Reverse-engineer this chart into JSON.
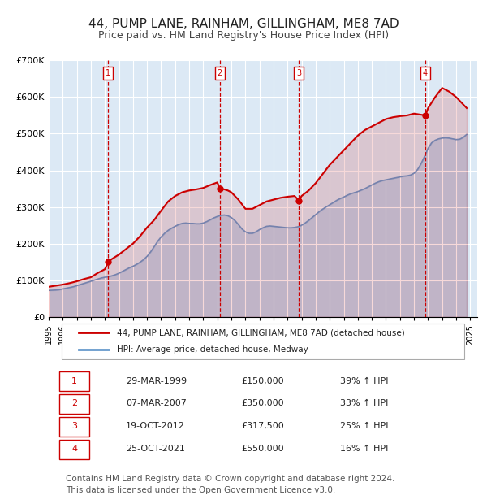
{
  "title": "44, PUMP LANE, RAINHAM, GILLINGHAM, ME8 7AD",
  "subtitle": "Price paid vs. HM Land Registry's House Price Index (HPI)",
  "title_fontsize": 11,
  "subtitle_fontsize": 9,
  "background_color": "#ffffff",
  "plot_bg_color": "#dce9f5",
  "grid_color": "#ffffff",
  "ylabel": "",
  "ylim": [
    0,
    700000
  ],
  "yticks": [
    0,
    100000,
    200000,
    300000,
    400000,
    500000,
    600000,
    700000
  ],
  "ytick_labels": [
    "£0",
    "£100K",
    "£200K",
    "£300K",
    "£400K",
    "£500K",
    "£600K",
    "£700K"
  ],
  "xlim_start": 1995.0,
  "xlim_end": 2025.5,
  "sale_color": "#cc0000",
  "hpi_color": "#6699cc",
  "sale_label": "44, PUMP LANE, RAINHAM, GILLINGHAM, ME8 7AD (detached house)",
  "hpi_label": "HPI: Average price, detached house, Medway",
  "purchases": [
    {
      "num": 1,
      "date_label": "29-MAR-1999",
      "year": 1999.24,
      "price": 150000,
      "pct": "39%",
      "vline_year": 1999.24
    },
    {
      "num": 2,
      "date_label": "07-MAR-2007",
      "year": 2007.18,
      "price": 350000,
      "pct": "33%",
      "vline_year": 2007.18
    },
    {
      "num": 3,
      "date_label": "19-OCT-2012",
      "year": 2012.8,
      "price": 317500,
      "pct": "25%",
      "vline_year": 2012.8
    },
    {
      "num": 4,
      "date_label": "25-OCT-2021",
      "year": 2021.81,
      "price": 550000,
      "pct": "16%",
      "vline_year": 2021.81
    }
  ],
  "hpi_data": {
    "years": [
      1995.0,
      1995.25,
      1995.5,
      1995.75,
      1996.0,
      1996.25,
      1996.5,
      1996.75,
      1997.0,
      1997.25,
      1997.5,
      1997.75,
      1998.0,
      1998.25,
      1998.5,
      1998.75,
      1999.0,
      1999.25,
      1999.5,
      1999.75,
      2000.0,
      2000.25,
      2000.5,
      2000.75,
      2001.0,
      2001.25,
      2001.5,
      2001.75,
      2002.0,
      2002.25,
      2002.5,
      2002.75,
      2003.0,
      2003.25,
      2003.5,
      2003.75,
      2004.0,
      2004.25,
      2004.5,
      2004.75,
      2005.0,
      2005.25,
      2005.5,
      2005.75,
      2006.0,
      2006.25,
      2006.5,
      2006.75,
      2007.0,
      2007.25,
      2007.5,
      2007.75,
      2008.0,
      2008.25,
      2008.5,
      2008.75,
      2009.0,
      2009.25,
      2009.5,
      2009.75,
      2010.0,
      2010.25,
      2010.5,
      2010.75,
      2011.0,
      2011.25,
      2011.5,
      2011.75,
      2012.0,
      2012.25,
      2012.5,
      2012.75,
      2013.0,
      2013.25,
      2013.5,
      2013.75,
      2014.0,
      2014.25,
      2014.5,
      2014.75,
      2015.0,
      2015.25,
      2015.5,
      2015.75,
      2016.0,
      2016.25,
      2016.5,
      2016.75,
      2017.0,
      2017.25,
      2017.5,
      2017.75,
      2018.0,
      2018.25,
      2018.5,
      2018.75,
      2019.0,
      2019.25,
      2019.5,
      2019.75,
      2020.0,
      2020.25,
      2020.5,
      2020.75,
      2021.0,
      2021.25,
      2021.5,
      2021.75,
      2022.0,
      2022.25,
      2022.5,
      2022.75,
      2023.0,
      2023.25,
      2023.5,
      2023.75,
      2024.0,
      2024.25,
      2024.5,
      2024.75
    ],
    "values": [
      72000,
      72500,
      73000,
      74000,
      76000,
      78000,
      80000,
      82000,
      85000,
      88000,
      91000,
      94000,
      97000,
      100000,
      103000,
      106000,
      108000,
      109500,
      112000,
      115000,
      119000,
      124000,
      129000,
      134000,
      138000,
      143000,
      149000,
      156000,
      165000,
      177000,
      191000,
      206000,
      218000,
      228000,
      236000,
      242000,
      247000,
      252000,
      255000,
      256000,
      255000,
      255000,
      254000,
      254000,
      256000,
      260000,
      265000,
      270000,
      274000,
      277000,
      278000,
      276000,
      271000,
      263000,
      252000,
      240000,
      232000,
      228000,
      228000,
      232000,
      238000,
      243000,
      247000,
      248000,
      247000,
      246000,
      245000,
      244000,
      243000,
      243000,
      244000,
      246000,
      250000,
      256000,
      263000,
      271000,
      279000,
      287000,
      294000,
      300000,
      306000,
      312000,
      318000,
      323000,
      327000,
      332000,
      336000,
      339000,
      342000,
      346000,
      350000,
      355000,
      360000,
      365000,
      369000,
      372000,
      374000,
      376000,
      378000,
      380000,
      382000,
      384000,
      385000,
      387000,
      392000,
      402000,
      418000,
      438000,
      460000,
      475000,
      482000,
      486000,
      488000,
      489000,
      488000,
      486000,
      484000,
      485000,
      490000,
      498000
    ]
  },
  "sale_line_data": {
    "years": [
      1995.0,
      1995.5,
      1996.0,
      1996.5,
      1997.0,
      1997.5,
      1998.0,
      1998.5,
      1999.0,
      1999.24,
      1999.5,
      2000.0,
      2000.5,
      2001.0,
      2001.5,
      2002.0,
      2002.5,
      2003.0,
      2003.5,
      2004.0,
      2004.5,
      2005.0,
      2005.5,
      2006.0,
      2006.5,
      2007.0,
      2007.18,
      2007.5,
      2007.75,
      2008.0,
      2008.5,
      2009.0,
      2009.5,
      2010.0,
      2010.5,
      2011.0,
      2011.5,
      2012.0,
      2012.5,
      2012.8,
      2013.0,
      2013.5,
      2014.0,
      2014.5,
      2015.0,
      2015.5,
      2016.0,
      2016.5,
      2017.0,
      2017.5,
      2018.0,
      2018.5,
      2019.0,
      2019.5,
      2020.0,
      2020.5,
      2021.0,
      2021.81,
      2022.0,
      2022.5,
      2023.0,
      2023.5,
      2024.0,
      2024.5,
      2024.75
    ],
    "values": [
      82000,
      85000,
      88000,
      92000,
      97000,
      103000,
      108000,
      120000,
      130000,
      150000,
      158000,
      170000,
      185000,
      200000,
      220000,
      244000,
      264000,
      290000,
      315000,
      330000,
      340000,
      345000,
      348000,
      352000,
      360000,
      367000,
      350000,
      348000,
      345000,
      340000,
      320000,
      295000,
      295000,
      305000,
      315000,
      320000,
      325000,
      328000,
      330000,
      317500,
      330000,
      345000,
      365000,
      390000,
      415000,
      435000,
      455000,
      475000,
      495000,
      510000,
      520000,
      530000,
      540000,
      545000,
      548000,
      550000,
      555000,
      550000,
      570000,
      600000,
      625000,
      615000,
      600000,
      580000,
      570000
    ]
  },
  "footer": "Contains HM Land Registry data © Crown copyright and database right 2024.\nThis data is licensed under the Open Government Licence v3.0.",
  "footer_fontsize": 7.5
}
